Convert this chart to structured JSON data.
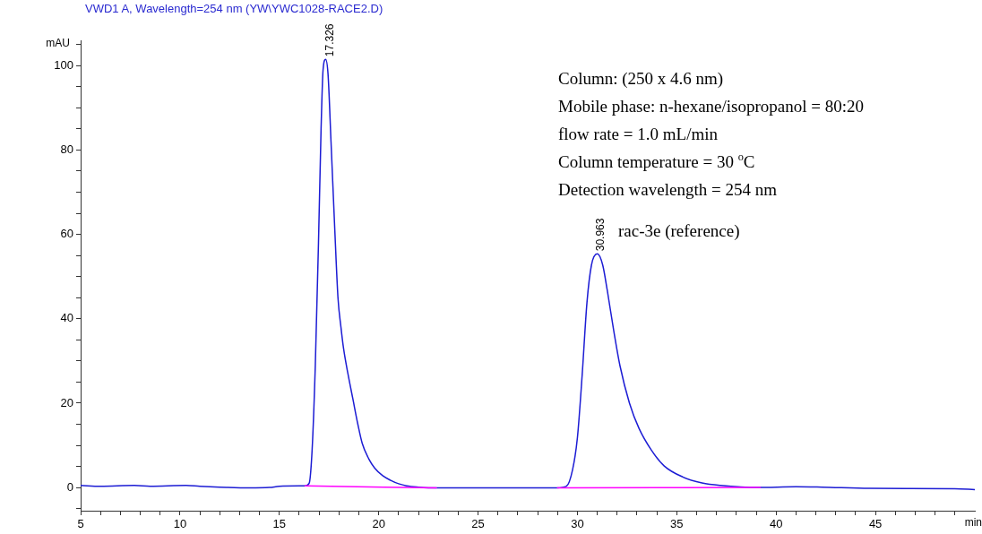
{
  "chart_data": {
    "type": "line",
    "title": "VWD1 A, Wavelength=254 nm (YW\\YWC1028-RACE2.D)",
    "xlabel": "min",
    "ylabel": "mAU",
    "xlim": [
      5,
      50
    ],
    "ylim": [
      -5.5,
      106
    ],
    "xticks": [
      5,
      {
        "value": 6,
        "label": null
      },
      {
        "value": 7,
        "label": null
      },
      {
        "value": 8,
        "label": null
      },
      {
        "value": 9,
        "label": null
      },
      10,
      {
        "value": 11,
        "label": null
      },
      {
        "value": 12,
        "label": null
      },
      {
        "value": 13,
        "label": null
      },
      {
        "value": 14,
        "label": null
      },
      15,
      {
        "value": 16,
        "label": null
      },
      {
        "value": 17,
        "label": null
      },
      {
        "value": 18,
        "label": null
      },
      {
        "value": 19,
        "label": null
      },
      20,
      {
        "value": 21,
        "label": null
      },
      {
        "value": 22,
        "label": null
      },
      {
        "value": 23,
        "label": null
      },
      {
        "value": 24,
        "label": null
      },
      25,
      {
        "value": 26,
        "label": null
      },
      {
        "value": 27,
        "label": null
      },
      {
        "value": 28,
        "label": null
      },
      {
        "value": 29,
        "label": null
      },
      30,
      {
        "value": 31,
        "label": null
      },
      {
        "value": 32,
        "label": null
      },
      {
        "value": 33,
        "label": null
      },
      {
        "value": 34,
        "label": null
      },
      35,
      {
        "value": 36,
        "label": null
      },
      {
        "value": 37,
        "label": null
      },
      {
        "value": 38,
        "label": null
      },
      {
        "value": 39,
        "label": null
      },
      40,
      {
        "value": 41,
        "label": null
      },
      {
        "value": 42,
        "label": null
      },
      {
        "value": 43,
        "label": null
      },
      {
        "value": 44,
        "label": null
      },
      45,
      {
        "value": 46,
        "label": null
      },
      {
        "value": 47,
        "label": null
      },
      {
        "value": 48,
        "label": null
      },
      {
        "value": 49,
        "label": null
      }
    ],
    "yticks": [
      {
        "value": -5,
        "label": null
      },
      0,
      {
        "value": 5,
        "label": null
      },
      {
        "value": 10,
        "label": null
      },
      {
        "value": 15,
        "label": null
      },
      20,
      {
        "value": 25,
        "label": null
      },
      {
        "value": 30,
        "label": null
      },
      {
        "value": 35,
        "label": null
      },
      40,
      {
        "value": 45,
        "label": null
      },
      {
        "value": 50,
        "label": null
      },
      {
        "value": 55,
        "label": null
      },
      60,
      {
        "value": 65,
        "label": null
      },
      {
        "value": 70,
        "label": null
      },
      {
        "value": 75,
        "label": null
      },
      80,
      {
        "value": 85,
        "label": null
      },
      {
        "value": 90,
        "label": null
      },
      {
        "value": 95,
        "label": null
      },
      100,
      {
        "value": 105,
        "label": null
      }
    ],
    "grid": false,
    "legend": false,
    "marker": "none",
    "line_style": "solid",
    "series": [
      {
        "color": "#1c1cd4",
        "x": [
          5,
          6,
          7.7,
          8.5,
          10.3,
          11,
          12,
          13.5,
          14.5,
          15,
          16,
          16.3,
          16.5,
          16.65,
          16.81,
          16.97,
          17.1,
          17.2,
          17.33,
          17.45,
          17.6,
          17.8,
          17.95,
          18.1,
          18.23,
          18.45,
          18.7,
          18.95,
          19.17,
          19.5,
          19.8,
          20.2,
          20.6,
          21,
          21.4,
          22,
          22.9,
          28.97,
          29.45,
          29.76,
          30,
          30.24,
          30.48,
          30.71,
          31,
          31.27,
          31.5,
          31.83,
          32.14,
          32.62,
          33.1,
          33.73,
          34.37,
          35.3,
          36.27,
          37.2,
          39.1,
          41,
          42.3,
          44.7,
          49,
          50
        ],
        "values": [
          0.5,
          0.3,
          0.5,
          0.3,
          0.5,
          0.3,
          0.1,
          -0.1,
          0,
          0.3,
          0.4,
          0.4,
          1,
          9,
          29,
          58,
          85,
          99,
          101.5,
          98,
          82,
          60,
          45,
          38,
          33,
          27,
          21,
          15,
          10.5,
          6.8,
          4.6,
          2.8,
          1.7,
          0.9,
          0.4,
          0.1,
          -0.1,
          -0.1,
          0.3,
          4.3,
          11.8,
          26.7,
          43.8,
          52.8,
          55.4,
          52.8,
          46.8,
          37.1,
          28.9,
          20,
          14,
          8.8,
          5.1,
          2.5,
          1.1,
          0.5,
          0,
          0.2,
          0.1,
          -0.2,
          -0.3,
          -0.5
        ]
      },
      {
        "color": "#ff00ff",
        "x": [
          16.3,
          22.9
        ],
        "values": [
          0.4,
          -0.1
        ]
      },
      {
        "color": "#ff00ff",
        "x": [
          29,
          39.2
        ],
        "values": [
          -0.1,
          0
        ]
      }
    ],
    "annotations": [
      {
        "text": "17.326",
        "x": 17.326,
        "y": 101.5
      },
      {
        "text": "30.963",
        "x": 30.963,
        "y": 55.4
      },
      "Column: (250 x 4.6 nm)",
      "Mobile phase: n-hexane/isopropanol = 80:20",
      "flow rate = 1.0 mL/min",
      "Column temperature = 30 $^{o}$C",
      "Detection wavelength = 254 nm",
      "rac-3e (reference)"
    ]
  }
}
